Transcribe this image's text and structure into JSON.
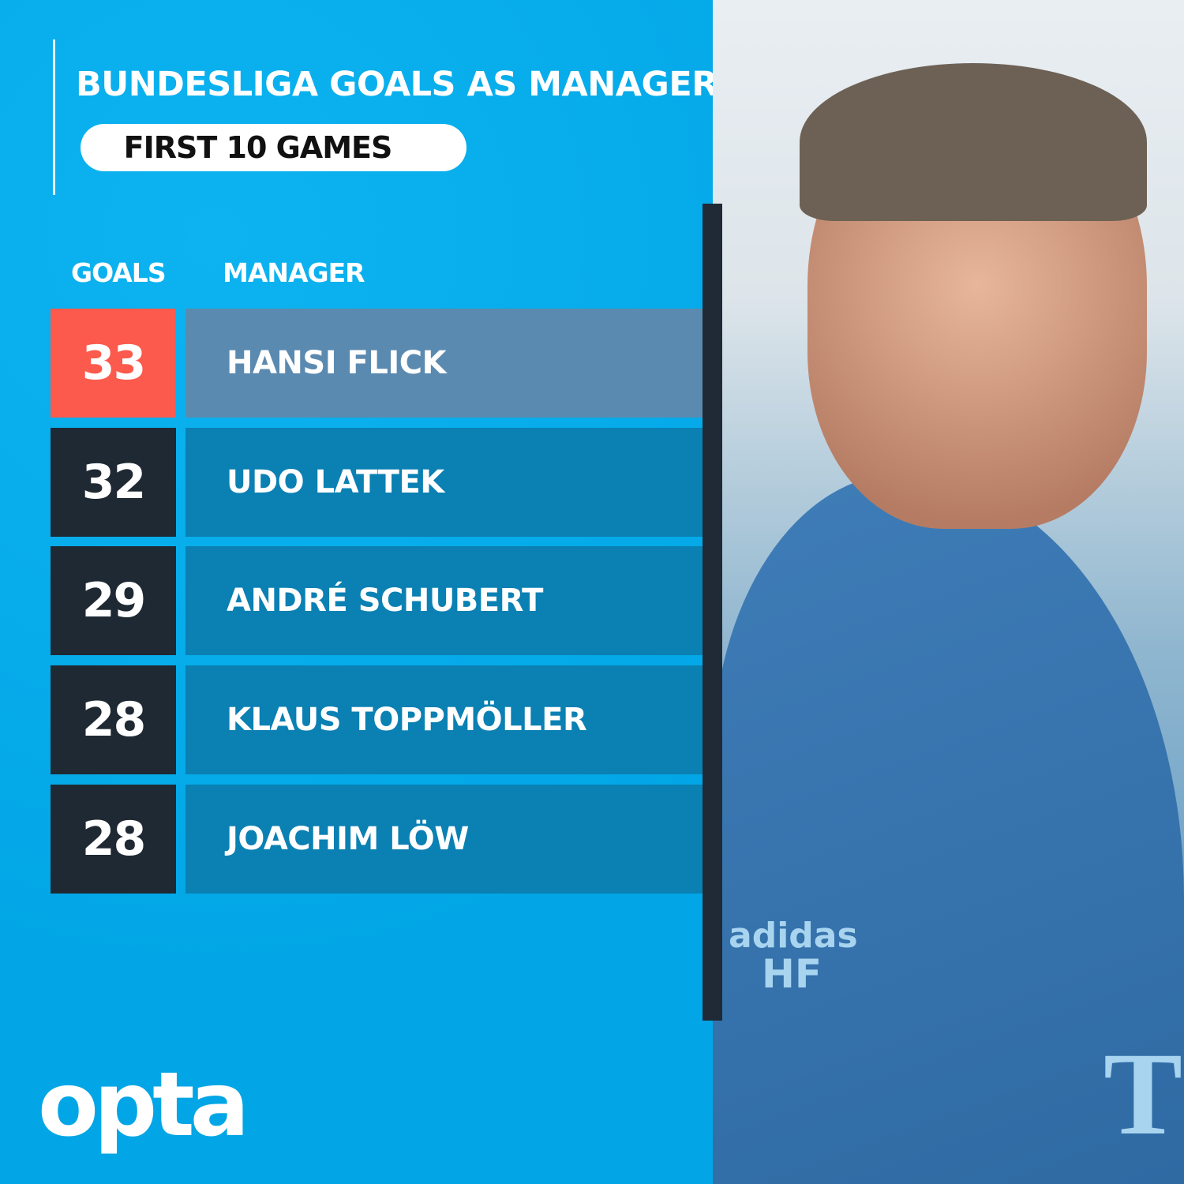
{
  "title": "BUNDESLIGA GOALS AS MANAGER",
  "subtitle": "FIRST 10 GAMES",
  "logo": "opta",
  "colors": {
    "background": "#03aceb",
    "highlight_goals": "#fb5a4c",
    "highlight_name": "#5b8ab0",
    "goals_box": "#1f2933",
    "name_box": "#0a80b3"
  },
  "chart_data": {
    "type": "table",
    "title": "BUNDESLIGA GOALS AS MANAGER",
    "subtitle": "FIRST 10 GAMES",
    "columns": [
      "GOALS",
      "MANAGER"
    ],
    "rows": [
      {
        "goals": "33",
        "manager": "HANSI FLICK",
        "highlight": true
      },
      {
        "goals": "32",
        "manager": "UDO LATTEK"
      },
      {
        "goals": "29",
        "manager": "ANDRÉ SCHUBERT"
      },
      {
        "goals": "28",
        "manager": "KLAUS TOPPMÖLLER"
      },
      {
        "goals": "28",
        "manager": "JOACHIM LÖW"
      }
    ]
  },
  "photo": {
    "jacket_text_1": "adidas",
    "jacket_text_2": "HF",
    "jacket_text_3": "T"
  }
}
